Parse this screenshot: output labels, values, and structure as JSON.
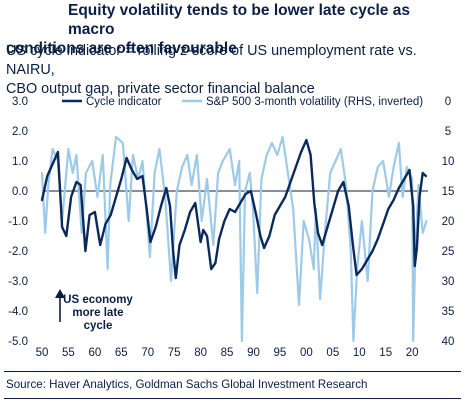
{
  "header": {
    "title_line1": "Equity volatility tends to be lower late cycle as macro",
    "title_line2": "conditions are often favourable",
    "subtitle_line1": "US cycle indicator = rolling z-score of US unemployment rate vs. NAIRU,",
    "subtitle_line2": "CBO output gap, private sector financial balance"
  },
  "source": "Source: Haver Analytics, Goldman Sachs Global Investment Research",
  "annotation": {
    "line1": "US economy",
    "line2": "more late",
    "line3": "cycle"
  },
  "colors": {
    "cycle": "#0b2a5b",
    "vol": "#9ecae9",
    "text": "#0b1f44"
  },
  "chart_data": {
    "type": "line",
    "title": "Equity volatility tends to be lower late cycle as macro conditions are often favourable",
    "subtitle": "US cycle indicator = rolling z-score of US unemployment rate vs. NAIRU, CBO output gap, private sector financial balance",
    "xlabel": "",
    "ylabel": "",
    "x_ticks": [
      "50",
      "55",
      "60",
      "65",
      "70",
      "75",
      "80",
      "85",
      "90",
      "95",
      "00",
      "05",
      "10",
      "15",
      "20"
    ],
    "xlim": [
      1950,
      2023
    ],
    "y_left_ticks": [
      "3.0",
      "2.0",
      "1.0",
      "0.0",
      "-1.0",
      "-2.0",
      "-3.0",
      "-4.0",
      "-5.0"
    ],
    "ylim_left": [
      -5,
      3
    ],
    "y_right_ticks": [
      "0",
      "5",
      "10",
      "15",
      "20",
      "25",
      "30",
      "35",
      "40"
    ],
    "ylim_right_inverted": [
      0,
      40
    ],
    "legend_position": "top",
    "series": [
      {
        "name": "Cycle indicator",
        "axis": "left",
        "color": "#0b2a5b",
        "x": [
          1950,
          1951,
          1952,
          1953,
          1953.8,
          1954.6,
          1955.5,
          1956.5,
          1957.3,
          1958.2,
          1959,
          1960,
          1961,
          1962,
          1963,
          1964,
          1965,
          1966,
          1967,
          1968,
          1969,
          1969.8,
          1970.5,
          1971.5,
          1972.5,
          1973.5,
          1974.2,
          1974.8,
          1975.3,
          1976,
          1977,
          1978,
          1979,
          1980,
          1980.5,
          1981.2,
          1982,
          1982.8,
          1983.5,
          1984.5,
          1985.5,
          1986.5,
          1987.5,
          1988.5,
          1989.5,
          1990.5,
          1991.3,
          1992,
          1993,
          1994,
          1995,
          1996,
          1997,
          1998,
          1999,
          2000,
          2000.8,
          2001.5,
          2002.2,
          2003,
          2004,
          2005,
          2006,
          2007,
          2008,
          2008.8,
          2009.5,
          2010.5,
          2011.5,
          2012.5,
          2013.5,
          2014.5,
          2015.5,
          2016.5,
          2017.5,
          2018.5,
          2019.5,
          2020.2,
          2020.5,
          2020.9,
          2021.4,
          2022,
          2022.6
        ],
        "values": [
          -0.3,
          0.5,
          0.9,
          1.3,
          -1.2,
          -1.5,
          -0.2,
          0.3,
          0.2,
          -2.0,
          -0.8,
          -0.7,
          -1.8,
          -1.1,
          -0.8,
          -0.2,
          0.4,
          1.1,
          0.7,
          0.4,
          0.5,
          -0.6,
          -1.7,
          -1.2,
          -0.5,
          0.1,
          -0.5,
          -2.0,
          -2.9,
          -1.8,
          -1.3,
          -0.7,
          -0.4,
          -1.7,
          -1.3,
          -1.5,
          -2.6,
          -2.4,
          -1.6,
          -1.0,
          -0.6,
          -0.7,
          -0.4,
          -0.1,
          0.0,
          -0.8,
          -1.5,
          -1.9,
          -1.5,
          -0.8,
          -0.5,
          -0.2,
          0.3,
          0.8,
          1.3,
          1.7,
          1.2,
          -0.4,
          -1.4,
          -1.8,
          -1.2,
          -0.6,
          0.0,
          0.3,
          -0.5,
          -1.8,
          -2.8,
          -2.6,
          -2.3,
          -2.0,
          -1.6,
          -1.1,
          -0.6,
          -0.3,
          0.1,
          0.4,
          0.7,
          -0.5,
          -2.5,
          -1.9,
          -0.2,
          0.6,
          0.5
        ]
      },
      {
        "name": "S&P 500 3-month volatility (RHS, inverted)",
        "axis": "right",
        "color": "#9ecae9",
        "x": [
          1950,
          1950.6,
          1951.2,
          1952,
          1953,
          1953.8,
          1955,
          1955.8,
          1956.5,
          1957.5,
          1958.3,
          1959.5,
          1960.5,
          1961.5,
          1962.4,
          1962.9,
          1964,
          1965.3,
          1966.4,
          1967.2,
          1968.2,
          1969,
          1970.4,
          1971.3,
          1972.2,
          1973.3,
          1974.4,
          1975.5,
          1976.5,
          1977.5,
          1978.3,
          1979.3,
          1980.2,
          1981.2,
          1982.4,
          1983.3,
          1984.2,
          1985.5,
          1986.5,
          1987.3,
          1987.8,
          1988.4,
          1989.3,
          1989.9,
          1990.7,
          1991.5,
          1992.5,
          1993.5,
          1994.5,
          1995.5,
          1996.5,
          1997.5,
          1998.6,
          1999.5,
          2000.5,
          2001.4,
          2001.8,
          2002.6,
          2003.5,
          2004.5,
          2005.5,
          2006.5,
          2007.5,
          2008.4,
          2008.9,
          2009.6,
          2010.5,
          2011.6,
          2012.5,
          2013.5,
          2014.5,
          2015.6,
          2016.5,
          2017.5,
          2018.2,
          2019,
          2020,
          2020.2,
          2020.6,
          2021.2,
          2022,
          2022.7
        ],
        "values": [
          12,
          22,
          14,
          8,
          10,
          20,
          8,
          12,
          9,
          22,
          12,
          10,
          16,
          9,
          28,
          14,
          6,
          7,
          20,
          9,
          13,
          10,
          26,
          12,
          8,
          16,
          30,
          15,
          11,
          9,
          14,
          9,
          20,
          13,
          24,
          12,
          10,
          8,
          14,
          10,
          40,
          15,
          12,
          18,
          32,
          13,
          9,
          7,
          9,
          6,
          12,
          18,
          34,
          20,
          23,
          28,
          18,
          33,
          22,
          12,
          10,
          8,
          14,
          25,
          40,
          28,
          20,
          30,
          15,
          11,
          10,
          16,
          11,
          7,
          16,
          11,
          13,
          40,
          25,
          14,
          22,
          20
        ]
      }
    ]
  }
}
